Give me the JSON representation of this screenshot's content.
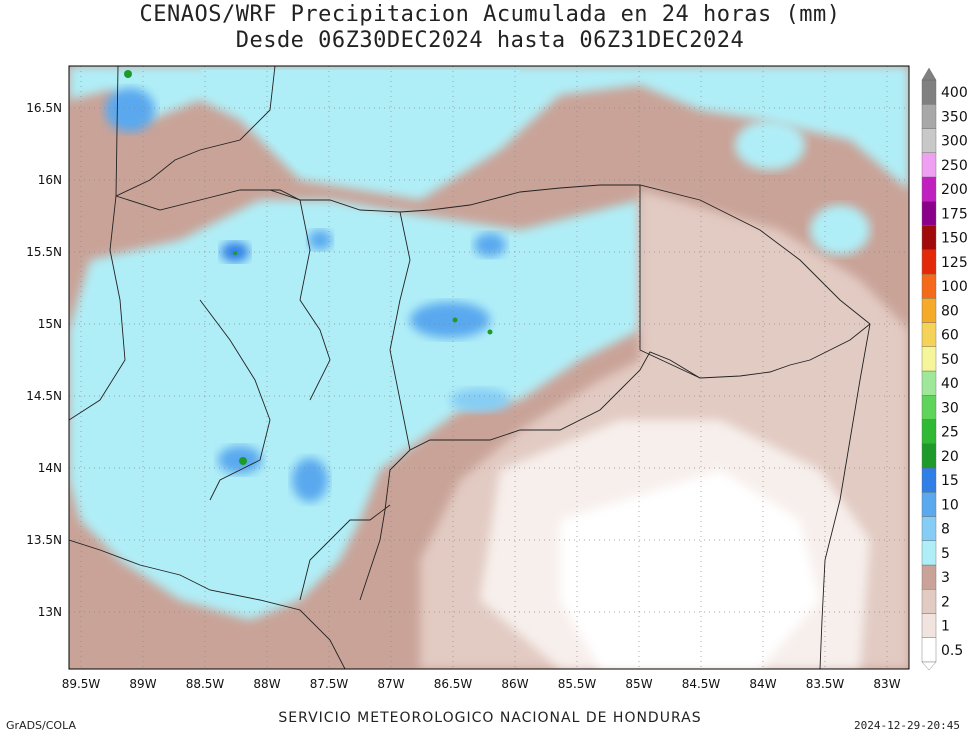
{
  "title": {
    "line1": "CENAOS/WRF Precipitacion Acumulada en 24 horas (mm)",
    "line2": "Desde 06Z30DEC2024 hasta 06Z31DEC2024"
  },
  "footer": {
    "left": "GrADS/COLA",
    "center": "SERVICIO METEOROLOGICO NACIONAL DE HONDURAS",
    "right": "2024-12-29-20:45"
  },
  "axes": {
    "lon_labels": [
      "89.5W",
      "89W",
      "88.5W",
      "88W",
      "87.5W",
      "87W",
      "86.5W",
      "86W",
      "85.5W",
      "85W",
      "84.5W",
      "84W",
      "83.5W",
      "83W"
    ],
    "lat_labels": [
      "16.5N",
      "16N",
      "15.5N",
      "15N",
      "14.5N",
      "14N",
      "13.5N",
      "13N"
    ]
  },
  "colorbar": {
    "levels": [
      "0.5",
      "1",
      "2",
      "3",
      "5",
      "8",
      "10",
      "15",
      "20",
      "25",
      "30",
      "40",
      "50",
      "60",
      "80",
      "100",
      "125",
      "150",
      "175",
      "200",
      "250",
      "300",
      "350",
      "400"
    ],
    "colors": [
      "#ffffff",
      "#f1e4df",
      "#e2cbc3",
      "#c9a398",
      "#b0eef7",
      "#86cdf5",
      "#5aa9ef",
      "#2f7fe6",
      "#1e9a2a",
      "#2fb935",
      "#5fd45a",
      "#9fe89a",
      "#f5f59a",
      "#f5d35a",
      "#f5aa2a",
      "#f56a1a",
      "#e22a0a",
      "#a00a0a",
      "#8a008a",
      "#c020c0",
      "#f0a0f0",
      "#c8c8c8",
      "#a8a8a8",
      "#808080"
    ]
  },
  "legend_colors": {
    "ocean_rain": "#b0eef7",
    "land_dry": "#c9a398",
    "heavy": "#2f7fe6"
  }
}
